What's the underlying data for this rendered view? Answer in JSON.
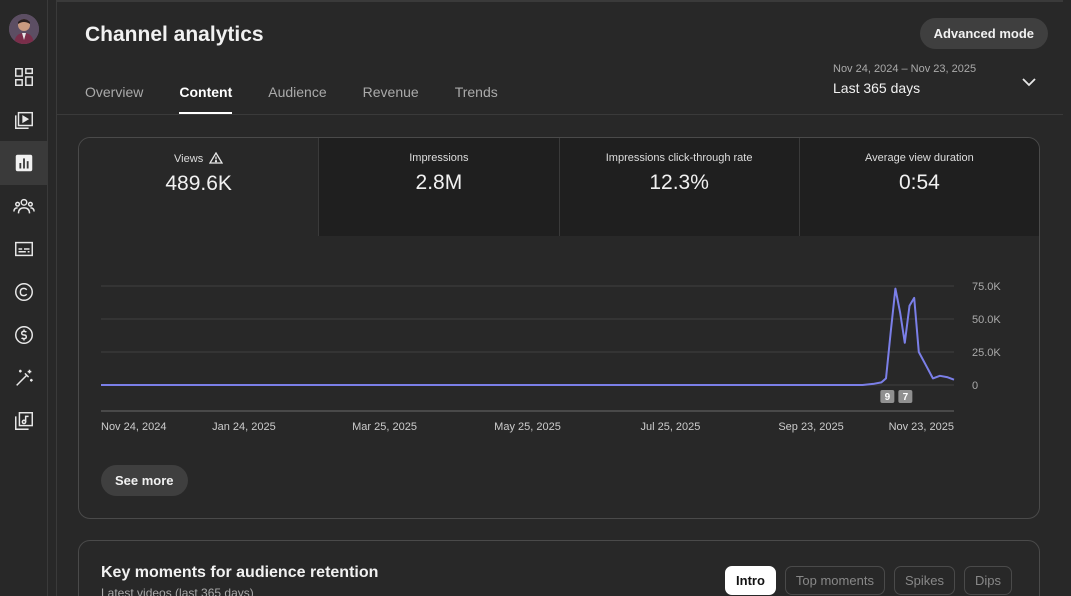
{
  "sidebar": {
    "items": [
      {
        "icon": "dashboard-icon",
        "label": "Dashboard"
      },
      {
        "icon": "content-icon",
        "label": "Content"
      },
      {
        "icon": "analytics-icon",
        "label": "Analytics",
        "active": true
      },
      {
        "icon": "community-icon",
        "label": "Community"
      },
      {
        "icon": "subtitles-icon",
        "label": "Subtitles"
      },
      {
        "icon": "copyright-icon",
        "label": "Copyright"
      },
      {
        "icon": "earn-icon",
        "label": "Earn"
      },
      {
        "icon": "customization-icon",
        "label": "Customization"
      },
      {
        "icon": "audio-library-icon",
        "label": "Audio library"
      }
    ]
  },
  "header": {
    "title": "Channel analytics",
    "advanced_mode_label": "Advanced mode",
    "date_range_sub": "Nov 24, 2024 – Nov 23, 2025",
    "date_range_label": "Last 365 days"
  },
  "tabs": [
    {
      "label": "Overview"
    },
    {
      "label": "Content",
      "active": true
    },
    {
      "label": "Audience"
    },
    {
      "label": "Revenue"
    },
    {
      "label": "Trends"
    }
  ],
  "metrics": [
    {
      "label": "Views",
      "value": "489.6K",
      "warning": true
    },
    {
      "label": "Impressions",
      "value": "2.8M"
    },
    {
      "label": "Impressions click-through rate",
      "value": "12.3%"
    },
    {
      "label": "Average view duration",
      "value": "0:54"
    }
  ],
  "chart_data": {
    "type": "line",
    "title": "",
    "xlabel": "",
    "ylabel": "",
    "ylim": [
      0,
      75000
    ],
    "y_ticks": [
      "75.0K",
      "50.0K",
      "25.0K",
      "0"
    ],
    "x_ticks": [
      "Nov 24, 2024",
      "Jan 24, 2025",
      "Mar 25, 2025",
      "May 25, 2025",
      "Jul 25, 2025",
      "Sep 23, 2025",
      "Nov 23, 2025"
    ],
    "grid": true,
    "series": [
      {
        "color": "#7b7fe8",
        "points": [
          [
            "Nov 24, 2024",
            0
          ],
          [
            "Oct 15, 2025",
            0
          ],
          [
            "Oct 20, 2025",
            1000
          ],
          [
            "Oct 23, 2025",
            2000
          ],
          [
            "Oct 25, 2025",
            5000
          ],
          [
            "Oct 27, 2025",
            40000
          ],
          [
            "Oct 29, 2025",
            73000
          ],
          [
            "Oct 31, 2025",
            55000
          ],
          [
            "Nov 2, 2025",
            32000
          ],
          [
            "Nov 4, 2025",
            60000
          ],
          [
            "Nov 6, 2025",
            66000
          ],
          [
            "Nov 8, 2025",
            25000
          ],
          [
            "Nov 11, 2025",
            15000
          ],
          [
            "Nov 14, 2025",
            5000
          ],
          [
            "Nov 17, 2025",
            7000
          ],
          [
            "Nov 20, 2025",
            6000
          ],
          [
            "Nov 23, 2025",
            4000
          ]
        ]
      }
    ],
    "markers": [
      "9",
      "7"
    ]
  },
  "see_more_label": "See more",
  "retention": {
    "title": "Key moments for audience retention",
    "subtitle": "Latest videos (last 365 days)",
    "chips": [
      {
        "label": "Intro",
        "active": true
      },
      {
        "label": "Top moments"
      },
      {
        "label": "Spikes"
      },
      {
        "label": "Dips"
      }
    ]
  },
  "colors": {
    "accent": "#7b7fe8",
    "bg": "#282828"
  }
}
